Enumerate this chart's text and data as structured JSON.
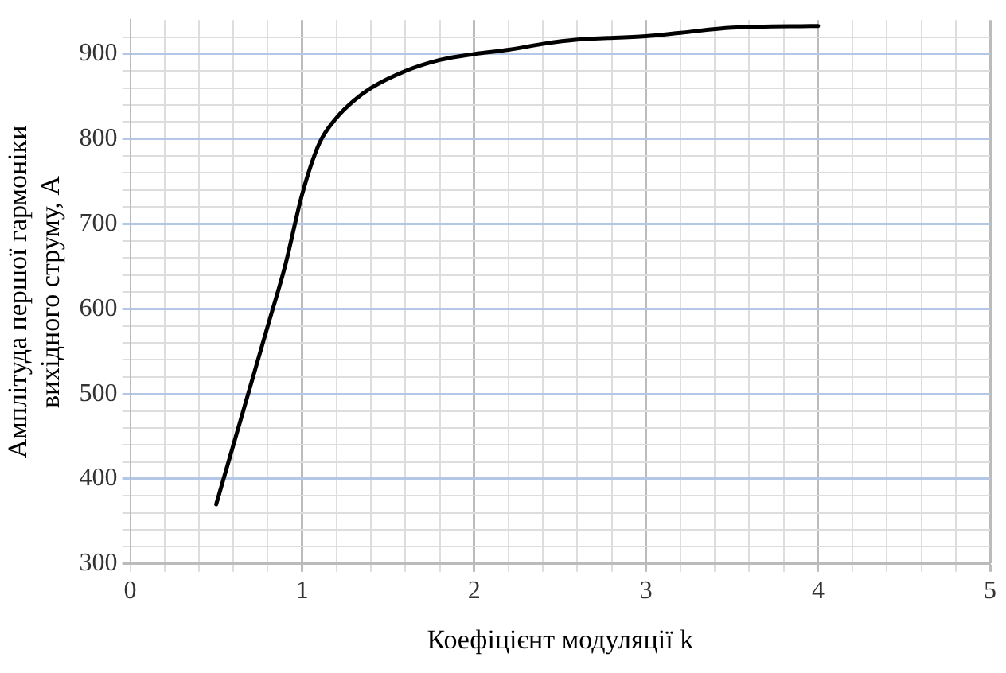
{
  "chart_data": {
    "type": "line",
    "xlabel": "Коефіцієнт модуляції k",
    "ylabel": "Амплітуда першої гармоніки вихідного струму, А",
    "x": [
      0.5,
      0.6,
      0.7,
      0.8,
      0.9,
      1.0,
      1.1,
      1.2,
      1.3,
      1.4,
      1.6,
      1.8,
      2.0,
      2.2,
      2.4,
      2.6,
      3.0,
      3.2,
      3.5,
      4.0
    ],
    "series": [
      {
        "color": "#000000",
        "values": [
          370,
          440,
          510,
          580,
          650,
          735,
          795,
          825,
          845,
          860,
          880,
          893,
          900,
          905,
          912,
          917,
          921,
          925,
          931,
          933
        ]
      }
    ],
    "xlim": [
      0,
      5
    ],
    "xticks": [
      0,
      {
        "value": 0.2,
        "label": null
      },
      {
        "value": 0.4,
        "label": null
      },
      {
        "value": 0.6,
        "label": null
      },
      {
        "value": 0.8,
        "label": null
      },
      1,
      {
        "value": 1.2,
        "label": null
      },
      {
        "value": 1.4,
        "label": null
      },
      {
        "value": 1.6,
        "label": null
      },
      {
        "value": 1.8,
        "label": null
      },
      2,
      {
        "value": 2.2,
        "label": null
      },
      {
        "value": 2.4,
        "label": null
      },
      {
        "value": 2.6,
        "label": null
      },
      {
        "value": 2.8,
        "label": null
      },
      3,
      {
        "value": 3.2,
        "label": null
      },
      {
        "value": 3.4,
        "label": null
      },
      {
        "value": 3.6,
        "label": null
      },
      {
        "value": 3.8,
        "label": null
      },
      4,
      {
        "value": 4.2,
        "label": null
      },
      {
        "value": 4.4,
        "label": null
      },
      {
        "value": 4.6,
        "label": null
      },
      {
        "value": 4.8,
        "label": null
      },
      5
    ],
    "ylim": [
      300,
      940
    ],
    "yticks": [
      300,
      {
        "value": 320,
        "label": null
      },
      {
        "value": 340,
        "label": null
      },
      {
        "value": 360,
        "label": null
      },
      {
        "value": 380,
        "label": null
      },
      400,
      {
        "value": 420,
        "label": null
      },
      {
        "value": 440,
        "label": null
      },
      {
        "value": 460,
        "label": null
      },
      {
        "value": 480,
        "label": null
      },
      500,
      {
        "value": 520,
        "label": null
      },
      {
        "value": 540,
        "label": null
      },
      {
        "value": 560,
        "label": null
      },
      {
        "value": 580,
        "label": null
      },
      600,
      {
        "value": 620,
        "label": null
      },
      {
        "value": 640,
        "label": null
      },
      {
        "value": 660,
        "label": null
      },
      {
        "value": 680,
        "label": null
      },
      700,
      {
        "value": 720,
        "label": null
      },
      {
        "value": 740,
        "label": null
      },
      {
        "value": 760,
        "label": null
      },
      {
        "value": 780,
        "label": null
      },
      800,
      {
        "value": 820,
        "label": null
      },
      {
        "value": 840,
        "label": null
      },
      {
        "value": 860,
        "label": null
      },
      {
        "value": 880,
        "label": null
      },
      900,
      {
        "value": 920,
        "label": null
      }
    ],
    "grid": true,
    "marker": "none",
    "line_style": "solid",
    "legend": false
  }
}
